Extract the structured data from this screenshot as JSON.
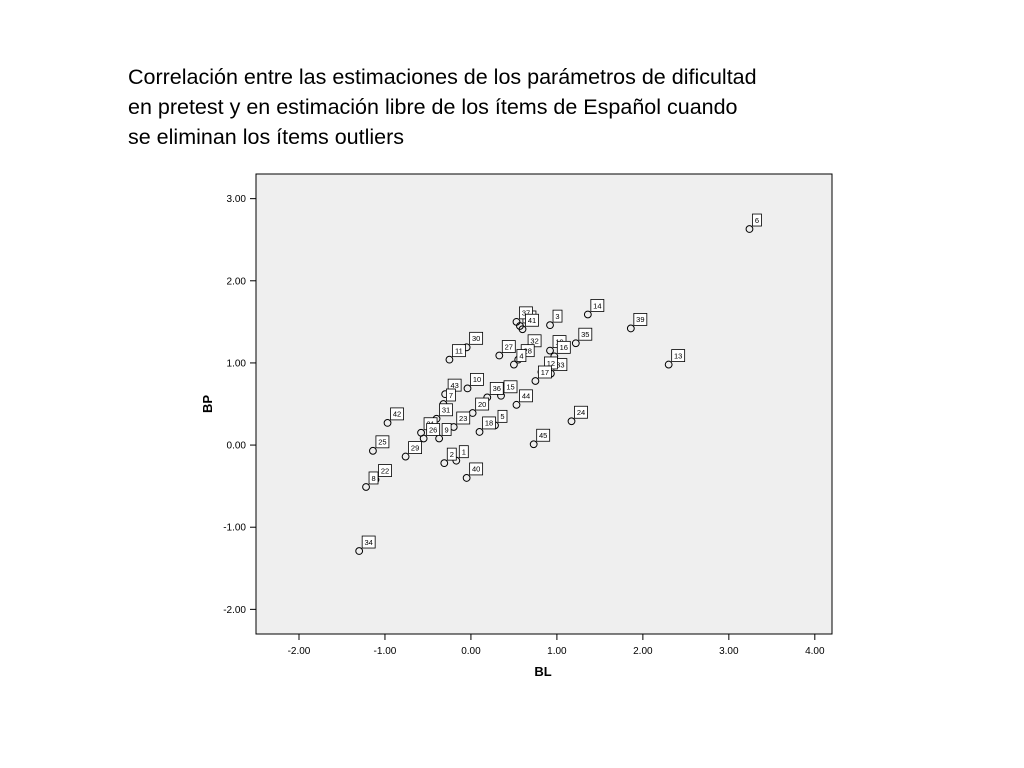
{
  "title_lines": [
    "Correlación entre las estimaciones de los parámetros de dificultad",
    "en pretest y en estimación libre de los ítems de Español cuando",
    "se eliminan los ítems outliers"
  ],
  "chart_data": {
    "type": "scatter",
    "title": "Correlación entre las estimaciones de los parámetros de dificultad en pretest y en estimación libre de los ítems de Español cuando se eliminan los ítems outliers",
    "xlabel": "BL",
    "ylabel": "BP",
    "xlim": [
      -2.5,
      4.2
    ],
    "ylim": [
      -2.3,
      3.3
    ],
    "xticks": [
      -2,
      -1,
      0,
      1,
      2,
      3,
      4
    ],
    "xtick_labels": [
      "-2.00",
      "-1.00",
      "0.00",
      "1.00",
      "2.00",
      "3.00",
      "4.00"
    ],
    "yticks": [
      -2,
      -1,
      0,
      1,
      2,
      3
    ],
    "ytick_labels": [
      "-2.00",
      "-1.00",
      "0.00",
      "1.00",
      "2.00",
      "3.00"
    ],
    "grid": false,
    "plot_background": "#efefef",
    "points": [
      {
        "label": "6",
        "x": 3.24,
        "y": 2.63
      },
      {
        "label": "14",
        "x": 1.36,
        "y": 1.59
      },
      {
        "label": "39",
        "x": 1.86,
        "y": 1.42
      },
      {
        "label": "38",
        "x": 0.57,
        "y": 1.45
      },
      {
        "label": "3",
        "x": 0.92,
        "y": 1.46
      },
      {
        "label": "37",
        "x": 0.53,
        "y": 1.5
      },
      {
        "label": "41",
        "x": 0.6,
        "y": 1.41
      },
      {
        "label": "35",
        "x": 1.22,
        "y": 1.24
      },
      {
        "label": "30",
        "x": -0.05,
        "y": 1.19
      },
      {
        "label": "32",
        "x": 0.63,
        "y": 1.16
      },
      {
        "label": "19",
        "x": 0.92,
        "y": 1.15
      },
      {
        "label": "27",
        "x": 0.33,
        "y": 1.09
      },
      {
        "label": "16",
        "x": 0.97,
        "y": 1.08
      },
      {
        "label": "28",
        "x": 0.55,
        "y": 1.04
      },
      {
        "label": "11",
        "x": -0.25,
        "y": 1.04
      },
      {
        "label": "4",
        "x": 0.5,
        "y": 0.98
      },
      {
        "label": "13",
        "x": 2.3,
        "y": 0.98
      },
      {
        "label": "33",
        "x": 0.93,
        "y": 0.87
      },
      {
        "label": "12",
        "x": 0.82,
        "y": 0.89
      },
      {
        "label": "17",
        "x": 0.75,
        "y": 0.78
      },
      {
        "label": "10",
        "x": -0.04,
        "y": 0.69
      },
      {
        "label": "43",
        "x": -0.3,
        "y": 0.62
      },
      {
        "label": "15",
        "x": 0.35,
        "y": 0.6
      },
      {
        "label": "36",
        "x": 0.19,
        "y": 0.58
      },
      {
        "label": "20",
        "x": 0.02,
        "y": 0.39
      },
      {
        "label": "44",
        "x": 0.53,
        "y": 0.49
      },
      {
        "label": "7",
        "x": -0.32,
        "y": 0.5
      },
      {
        "label": "42",
        "x": -0.97,
        "y": 0.27
      },
      {
        "label": "24",
        "x": 1.17,
        "y": 0.29
      },
      {
        "label": "31",
        "x": -0.4,
        "y": 0.32
      },
      {
        "label": "23",
        "x": -0.2,
        "y": 0.22
      },
      {
        "label": "5",
        "x": 0.28,
        "y": 0.24
      },
      {
        "label": "21",
        "x": -0.58,
        "y": 0.15
      },
      {
        "label": "18",
        "x": 0.1,
        "y": 0.16
      },
      {
        "label": "9",
        "x": -0.37,
        "y": 0.08
      },
      {
        "label": "45",
        "x": 0.73,
        "y": 0.01
      },
      {
        "label": "25",
        "x": -1.14,
        "y": -0.07
      },
      {
        "label": "26",
        "x": -0.55,
        "y": 0.08
      },
      {
        "label": "29",
        "x": -0.76,
        "y": -0.14
      },
      {
        "label": "1",
        "x": -0.17,
        "y": -0.19
      },
      {
        "label": "2",
        "x": -0.31,
        "y": -0.22
      },
      {
        "label": "22",
        "x": -1.11,
        "y": -0.42
      },
      {
        "label": "40",
        "x": -0.05,
        "y": -0.4
      },
      {
        "label": "8",
        "x": -1.22,
        "y": -0.51
      },
      {
        "label": "34",
        "x": -1.3,
        "y": -1.29
      }
    ]
  }
}
